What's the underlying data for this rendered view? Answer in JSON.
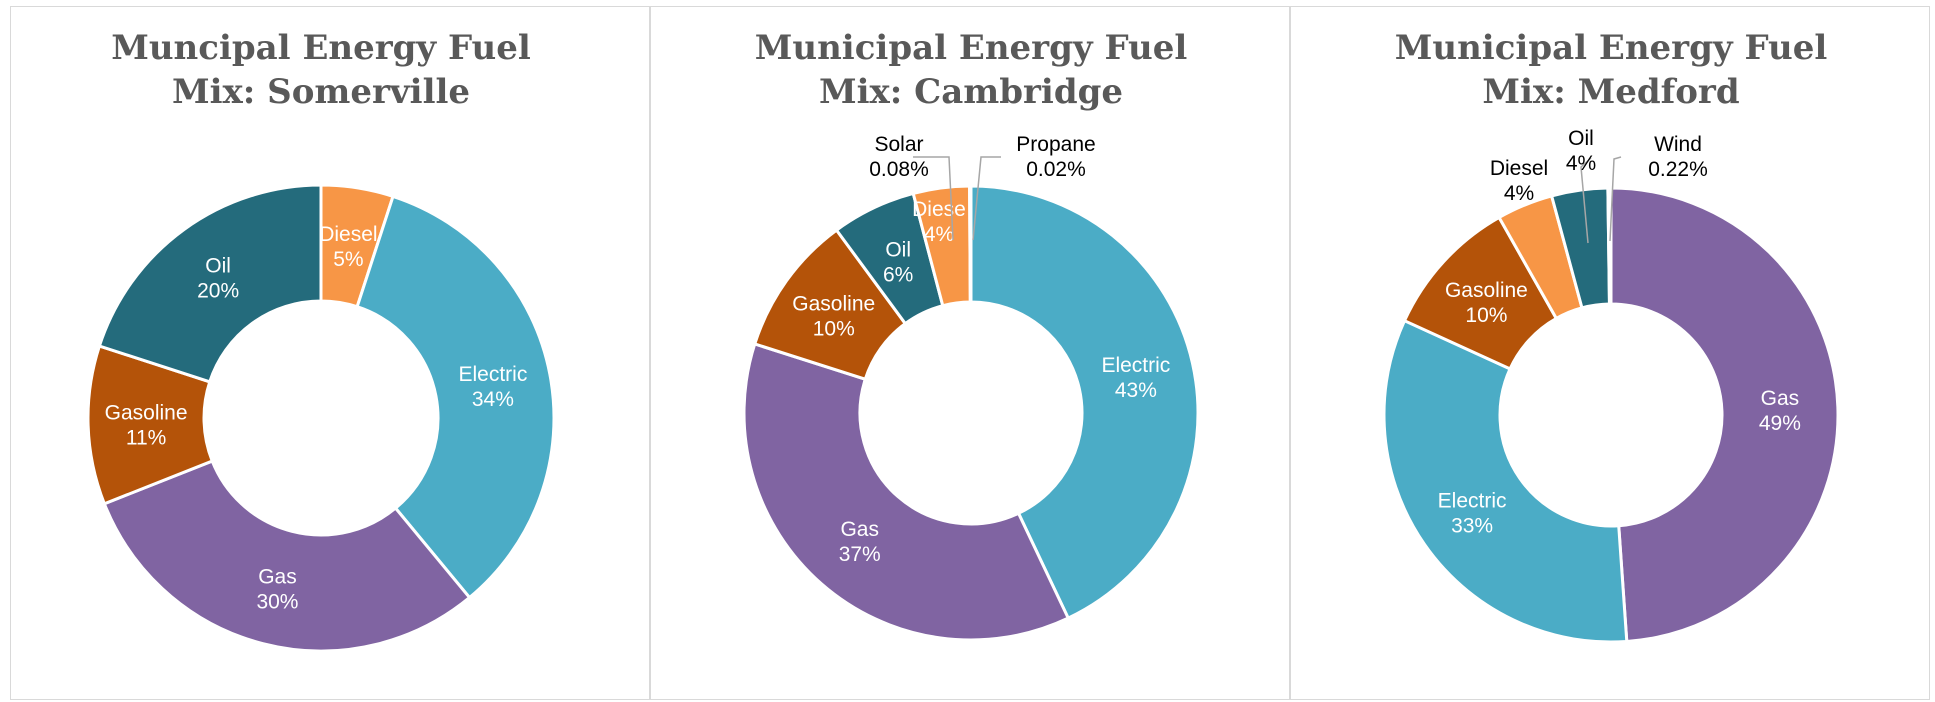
{
  "chart_data": [
    {
      "type": "pie",
      "title_lines": [
        "Muncipal Energy Fuel",
        "Mix: Somerville"
      ],
      "start": "Diesel",
      "slices": [
        {
          "label": "Diesel",
          "pct_label": "5%",
          "value": 5,
          "color": "#F79646"
        },
        {
          "label": "Electric",
          "pct_label": "34%",
          "value": 34,
          "color": "#4BACC6"
        },
        {
          "label": "Gas",
          "pct_label": "30%",
          "value": 30,
          "color": "#8064A2"
        },
        {
          "label": "Gasoline",
          "pct_label": "11%",
          "value": 11,
          "color": "#B45309"
        },
        {
          "label": "Oil",
          "pct_label": "20%",
          "value": 20,
          "color": "#246B7C"
        }
      ]
    },
    {
      "type": "pie",
      "title_lines": [
        "Municipal Energy Fuel",
        "Mix: Cambridge"
      ],
      "slices": [
        {
          "label": "Electric",
          "pct_label": "43%",
          "value": 43,
          "color": "#4BACC6"
        },
        {
          "label": "Gas",
          "pct_label": "37%",
          "value": 37,
          "color": "#8064A2"
        },
        {
          "label": "Gasoline",
          "pct_label": "10%",
          "value": 10,
          "color": "#B45309"
        },
        {
          "label": "Oil",
          "pct_label": "6%",
          "value": 6,
          "color": "#246B7C"
        },
        {
          "label": "Diese",
          "pct_label": "4%",
          "value": 4,
          "color": "#F79646"
        },
        {
          "label": "Solar",
          "pct_label": "0.08%",
          "value": 0.08,
          "color": "#B7B7B7"
        },
        {
          "label": "Propane",
          "pct_label": "0.02%",
          "value": 0.02,
          "color": "#D9D9D9"
        }
      ]
    },
    {
      "type": "pie",
      "title_lines": [
        "Municipal Energy Fuel",
        "Mix: Medford"
      ],
      "slices": [
        {
          "label": "Gas",
          "pct_label": "49%",
          "value": 49,
          "color": "#8064A2"
        },
        {
          "label": "Electric",
          "pct_label": "33%",
          "value": 33,
          "color": "#4BACC6"
        },
        {
          "label": "Gasoline",
          "pct_label": "10%",
          "value": 10,
          "color": "#B45309"
        },
        {
          "label": "Diesel",
          "pct_label": "4%",
          "value": 4,
          "color": "#F79646"
        },
        {
          "label": "Oil",
          "pct_label": "4%",
          "value": 4,
          "color": "#246B7C"
        },
        {
          "label": "Wind",
          "pct_label": "0.22%",
          "value": 0.22,
          "color": "#D9D9D9"
        }
      ]
    }
  ]
}
